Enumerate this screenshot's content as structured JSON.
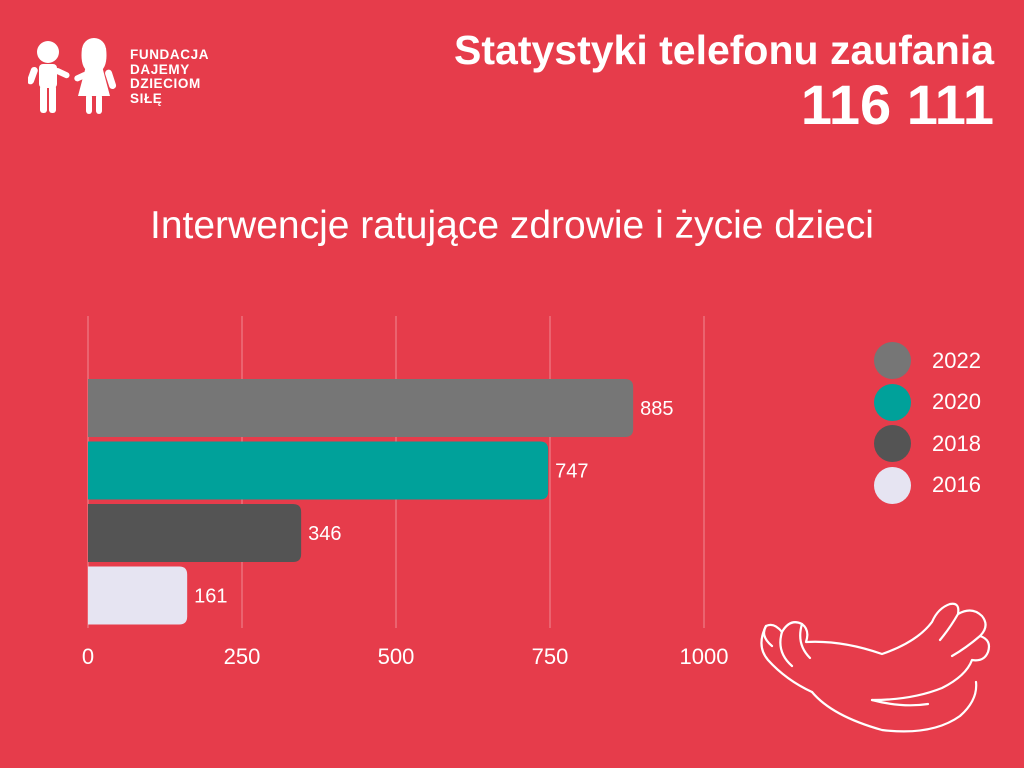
{
  "logo": {
    "lines": [
      "FUNDACJA",
      "DAJEMY",
      "DZIECIOM",
      "SIŁĘ"
    ],
    "icon": "children-holding-hands-icon"
  },
  "header": {
    "title_line1": "Statystyki telefonu zaufania",
    "title_line2": "116 111"
  },
  "illustration": {
    "icon": "hugging-arms-icon"
  },
  "chart_data": {
    "type": "bar",
    "orientation": "horizontal",
    "title": "Interwencje ratujące zdrowie i życie dzieci",
    "xlabel": "",
    "ylabel": "",
    "xlim": [
      0,
      1000
    ],
    "xticks": [
      "0",
      "250",
      "500",
      "750",
      "1000"
    ],
    "grid": true,
    "legend_position": "right",
    "series": [
      {
        "name": "2022",
        "value": 885,
        "color": "#767676"
      },
      {
        "name": "2020",
        "value": 747,
        "color": "#00a19a"
      },
      {
        "name": "2018",
        "value": 346,
        "color": "#545454"
      },
      {
        "name": "2016",
        "value": 161,
        "color": "#e6e4f2"
      }
    ]
  },
  "colors": {
    "background": "#e63c4b",
    "text": "#ffffff",
    "gridline": "#f08a93"
  }
}
